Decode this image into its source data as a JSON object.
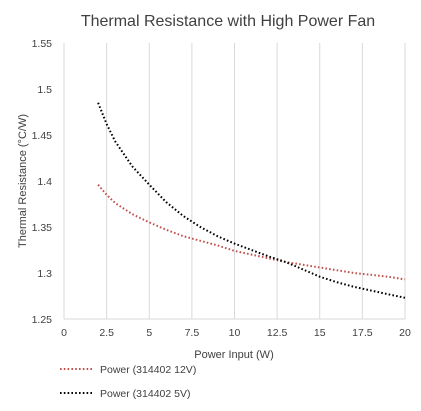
{
  "chart_data": {
    "type": "line",
    "title": "Thermal Resistance with High Power Fan",
    "xlabel": "Power Input (W)",
    "ylabel": "Thermal Resistance (°C/W)",
    "xlim": [
      0,
      20
    ],
    "ylim": [
      1.25,
      1.55
    ],
    "x_ticks": [
      "0",
      "2.5",
      "5",
      "7.5",
      "10",
      "12.5",
      "15",
      "17.5",
      "20"
    ],
    "y_ticks": [
      "1.25",
      "1.3",
      "1.35",
      "1.4",
      "1.45",
      "1.5",
      "1.55"
    ],
    "grid": "vertical",
    "legend_position": "bottom-left",
    "series": [
      {
        "name": "Power (314402 12V)",
        "color": "#c0504d",
        "style": "dotted",
        "x": [
          2,
          2.5,
          3,
          4,
          5,
          6,
          7,
          8,
          9,
          10,
          11,
          12,
          13,
          14,
          15,
          16,
          17,
          18,
          19,
          20
        ],
        "y": [
          1.396,
          1.385,
          1.376,
          1.364,
          1.355,
          1.347,
          1.34,
          1.335,
          1.33,
          1.324,
          1.32,
          1.316,
          1.312,
          1.309,
          1.306,
          1.303,
          1.3,
          1.298,
          1.296,
          1.293
        ]
      },
      {
        "name": "Power (314402 5V)",
        "color": "#000000",
        "style": "dotted",
        "x": [
          2,
          2.5,
          3,
          4,
          5,
          6,
          7,
          8,
          9,
          10,
          11,
          12,
          13,
          14,
          15,
          16,
          17,
          18,
          19,
          20
        ],
        "y": [
          1.485,
          1.462,
          1.443,
          1.416,
          1.396,
          1.377,
          1.362,
          1.35,
          1.34,
          1.332,
          1.325,
          1.318,
          1.312,
          1.304,
          1.296,
          1.29,
          1.285,
          1.281,
          1.277,
          1.273
        ]
      }
    ]
  }
}
